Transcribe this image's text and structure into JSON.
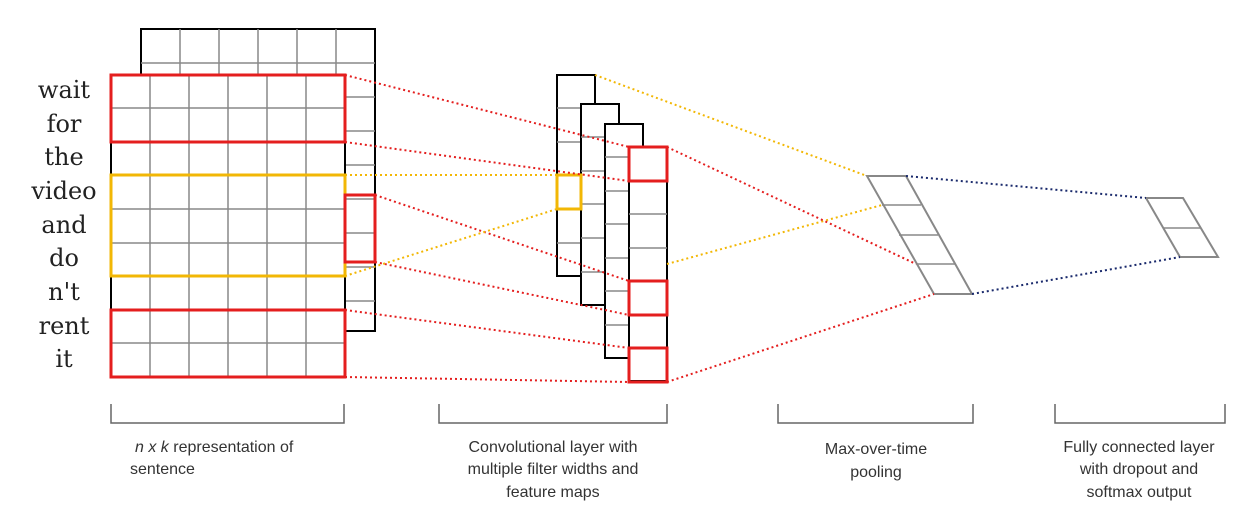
{
  "sentence": {
    "words": [
      "wait",
      "for",
      "the",
      "video",
      "and",
      "do",
      "n't",
      "rent",
      "it"
    ]
  },
  "captions": {
    "representation": {
      "italic_prefix": "n x k",
      "line1_rest": " representation of",
      "line2": "sentence"
    },
    "convolution": [
      "Convolutional layer with",
      "multiple filter widths and",
      "feature maps"
    ],
    "pooling": [
      "Max-over-time",
      "pooling"
    ],
    "fully_connected": [
      "Fully connected layer",
      "with dropout and",
      "softmax output"
    ]
  },
  "colors": {
    "grid": "#888888",
    "outline": "#000000",
    "filter_red": "#e41e1e",
    "filter_yellow": "#f2b705",
    "connector_blue": "#1a2a6c",
    "bracket": "#666666"
  }
}
